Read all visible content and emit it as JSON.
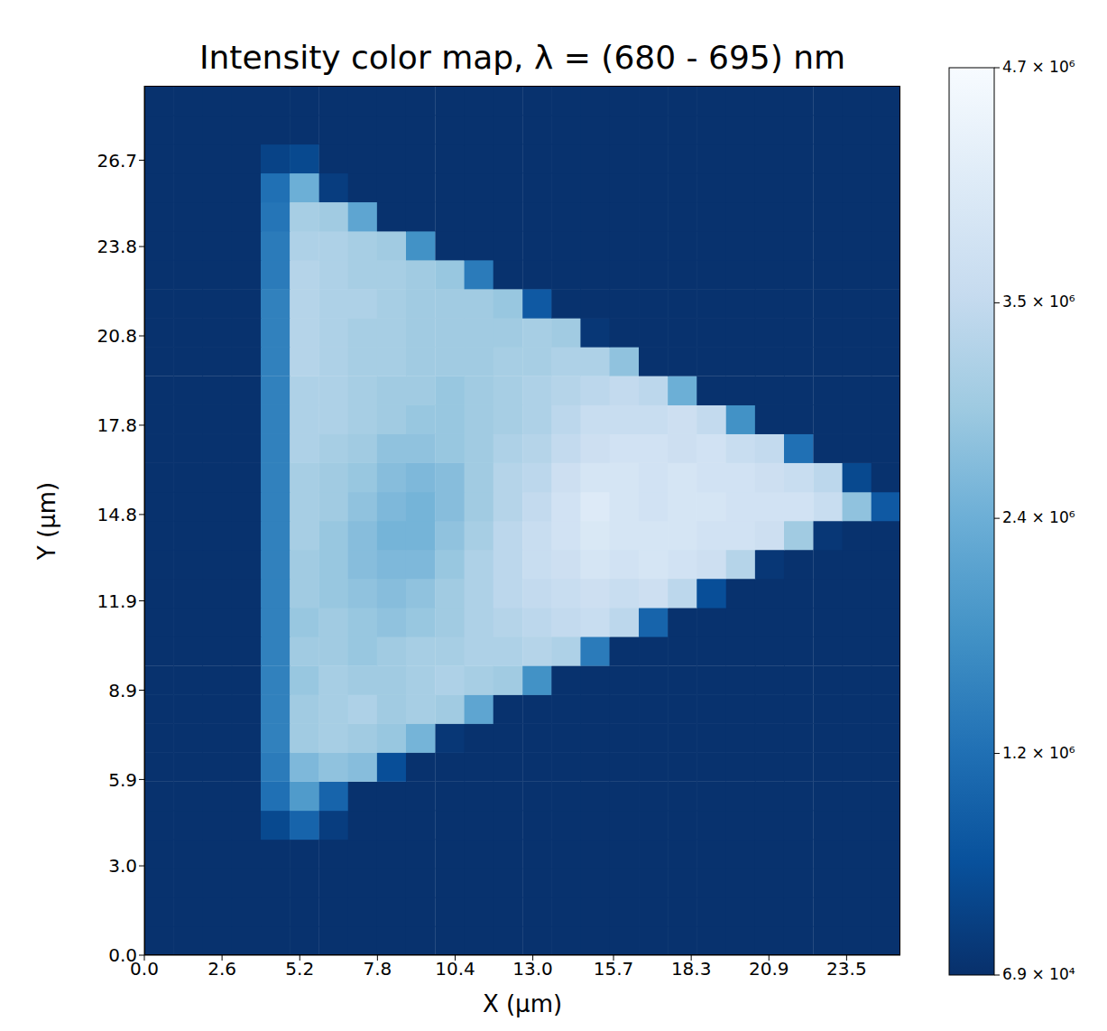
{
  "chart_data": {
    "type": "heatmap",
    "title": "Intensity color map, λ = (680 - 695) nm",
    "x_label": "X (μm)",
    "y_label": "Y (μm)",
    "xlim": [
      0,
      25.3
    ],
    "ylim": [
      0,
      29.2
    ],
    "xticks": [
      {
        "value": 0,
        "label": "0.0"
      },
      2.6,
      5.2,
      7.8,
      10.4,
      {
        "value": 13,
        "label": "13.0"
      },
      15.7,
      18.3,
      20.9,
      23.5
    ],
    "yticks": [
      {
        "value": 0,
        "label": "0.0"
      },
      {
        "value": 3,
        "label": "3.0"
      },
      5.9,
      8.9,
      11.9,
      14.8,
      17.8,
      20.8,
      23.8,
      26.7
    ],
    "x": [
      0.49,
      1.46,
      2.43,
      3.41,
      4.38,
      5.35,
      6.33,
      7.3,
      8.27,
      9.24,
      10.22,
      11.19,
      12.16,
      13.14,
      14.11,
      15.08,
      16.05,
      17.03,
      18.0,
      18.97,
      19.95,
      20.92,
      21.89,
      22.87,
      23.84,
      24.81
    ],
    "y": [
      0.49,
      1.46,
      2.43,
      3.41,
      4.38,
      5.35,
      6.33,
      7.3,
      8.27,
      9.24,
      10.22,
      11.19,
      12.16,
      13.14,
      14.11,
      15.08,
      16.05,
      17.03,
      18.0,
      18.97,
      19.95,
      20.92,
      21.89,
      22.87,
      23.84,
      24.81,
      25.79,
      26.76,
      27.73,
      28.7
    ],
    "values": [
      [
        100000.0,
        100000.0,
        100000.0,
        100000.0,
        100000.0,
        100000.0,
        100000.0,
        100000.0,
        100000.0,
        100000.0,
        100000.0,
        100000.0,
        100000.0,
        100000.0,
        100000.0,
        100000.0,
        100000.0,
        100000.0,
        100000.0,
        100000.0,
        100000.0,
        100000.0,
        100000.0,
        100000.0,
        100000.0,
        100000.0
      ],
      [
        100000.0,
        100000.0,
        100000.0,
        100000.0,
        100000.0,
        100000.0,
        100000.0,
        100000.0,
        100000.0,
        100000.0,
        100000.0,
        100000.0,
        100000.0,
        100000.0,
        100000.0,
        100000.0,
        100000.0,
        100000.0,
        100000.0,
        100000.0,
        100000.0,
        100000.0,
        100000.0,
        100000.0,
        100000.0,
        100000.0
      ],
      [
        100000.0,
        100000.0,
        100000.0,
        100000.0,
        100000.0,
        100000.0,
        100000.0,
        100000.0,
        100000.0,
        100000.0,
        100000.0,
        100000.0,
        100000.0,
        100000.0,
        100000.0,
        100000.0,
        100000.0,
        100000.0,
        100000.0,
        100000.0,
        100000.0,
        100000.0,
        100000.0,
        100000.0,
        100000.0,
        100000.0
      ],
      [
        100000.0,
        100000.0,
        100000.0,
        100000.0,
        100000.0,
        100000.0,
        100000.0,
        100000.0,
        100000.0,
        100000.0,
        100000.0,
        100000.0,
        100000.0,
        100000.0,
        100000.0,
        100000.0,
        100000.0,
        100000.0,
        100000.0,
        100000.0,
        100000.0,
        100000.0,
        100000.0,
        100000.0,
        100000.0,
        100000.0
      ],
      [
        100000.0,
        100000.0,
        100000.0,
        100000.0,
        500000.0,
        1000000.0,
        300000.0,
        100000.0,
        100000.0,
        100000.0,
        100000.0,
        100000.0,
        100000.0,
        100000.0,
        100000.0,
        100000.0,
        100000.0,
        100000.0,
        100000.0,
        100000.0,
        100000.0,
        100000.0,
        100000.0,
        100000.0,
        100000.0,
        100000.0
      ],
      [
        100000.0,
        100000.0,
        100000.0,
        100000.0,
        1200000.0,
        2000000.0,
        1000000.0,
        100000.0,
        100000.0,
        100000.0,
        100000.0,
        100000.0,
        100000.0,
        100000.0,
        100000.0,
        100000.0,
        100000.0,
        100000.0,
        100000.0,
        100000.0,
        100000.0,
        100000.0,
        100000.0,
        100000.0,
        100000.0,
        100000.0
      ],
      [
        100000.0,
        100000.0,
        100000.0,
        100000.0,
        1400000.0,
        2600000.0,
        2800000.0,
        2700000.0,
        600000.0,
        100000.0,
        100000.0,
        100000.0,
        100000.0,
        100000.0,
        100000.0,
        100000.0,
        100000.0,
        100000.0,
        100000.0,
        100000.0,
        100000.0,
        100000.0,
        100000.0,
        100000.0,
        100000.0,
        100000.0
      ],
      [
        100000.0,
        100000.0,
        100000.0,
        100000.0,
        1500000.0,
        3000000.0,
        3100000.0,
        3000000.0,
        2900000.0,
        2500000.0,
        200000.0,
        100000.0,
        100000.0,
        100000.0,
        100000.0,
        100000.0,
        100000.0,
        100000.0,
        100000.0,
        100000.0,
        100000.0,
        100000.0,
        100000.0,
        100000.0,
        100000.0,
        100000.0
      ],
      [
        100000.0,
        100000.0,
        100000.0,
        100000.0,
        1500000.0,
        3000000.0,
        3100000.0,
        3200000.0,
        3000000.0,
        3100000.0,
        3000000.0,
        2200000.0,
        100000.0,
        100000.0,
        100000.0,
        100000.0,
        100000.0,
        100000.0,
        100000.0,
        100000.0,
        100000.0,
        100000.0,
        100000.0,
        100000.0,
        100000.0,
        100000.0
      ],
      [
        100000.0,
        100000.0,
        100000.0,
        100000.0,
        1500000.0,
        2900000.0,
        3100000.0,
        3000000.0,
        3000000.0,
        3100000.0,
        3200000.0,
        3100000.0,
        3000000.0,
        1800000.0,
        100000.0,
        100000.0,
        100000.0,
        100000.0,
        100000.0,
        100000.0,
        100000.0,
        100000.0,
        100000.0,
        100000.0,
        100000.0,
        100000.0
      ],
      [
        100000.0,
        100000.0,
        100000.0,
        100000.0,
        1500000.0,
        3000000.0,
        3000000.0,
        2900000.0,
        3000000.0,
        3100000.0,
        3100000.0,
        3200000.0,
        3200000.0,
        3300000.0,
        3200000.0,
        1400000.0,
        100000.0,
        100000.0,
        100000.0,
        100000.0,
        100000.0,
        100000.0,
        100000.0,
        100000.0,
        100000.0,
        100000.0
      ],
      [
        100000.0,
        100000.0,
        100000.0,
        100000.0,
        1500000.0,
        2900000.0,
        3000000.0,
        2900000.0,
        2800000.0,
        2900000.0,
        3000000.0,
        3200000.0,
        3300000.0,
        3400000.0,
        3500000.0,
        3600000.0,
        3400000.0,
        1000000.0,
        100000.0,
        100000.0,
        100000.0,
        100000.0,
        100000.0,
        100000.0,
        100000.0,
        100000.0
      ],
      [
        100000.0,
        100000.0,
        100000.0,
        100000.0,
        1500000.0,
        3000000.0,
        2900000.0,
        2800000.0,
        2700000.0,
        2800000.0,
        3000000.0,
        3200000.0,
        3400000.0,
        3500000.0,
        3600000.0,
        3700000.0,
        3600000.0,
        3700000.0,
        3400000.0,
        600000.0,
        100000.0,
        100000.0,
        100000.0,
        100000.0,
        100000.0,
        100000.0
      ],
      [
        100000.0,
        100000.0,
        100000.0,
        100000.0,
        1500000.0,
        3000000.0,
        2900000.0,
        2700000.0,
        2600000.0,
        2600000.0,
        2900000.0,
        3200000.0,
        3400000.0,
        3600000.0,
        3700000.0,
        3900000.0,
        3800000.0,
        3900000.0,
        3800000.0,
        3700000.0,
        3300000.0,
        200000.0,
        100000.0,
        100000.0,
        100000.0,
        100000.0
      ],
      [
        100000.0,
        100000.0,
        100000.0,
        100000.0,
        1500000.0,
        3100000.0,
        2900000.0,
        2700000.0,
        2500000.0,
        2500000.0,
        2800000.0,
        3100000.0,
        3400000.0,
        3600000.0,
        3800000.0,
        4000000.0,
        3900000.0,
        3900000.0,
        3900000.0,
        3800000.0,
        3800000.0,
        3700000.0,
        3000000.0,
        200000.0,
        100000.0,
        100000.0
      ],
      [
        100000.0,
        100000.0,
        100000.0,
        100000.0,
        1500000.0,
        3100000.0,
        3000000.0,
        2800000.0,
        2600000.0,
        2500000.0,
        2700000.0,
        3000000.0,
        3300000.0,
        3500000.0,
        3800000.0,
        4100000.0,
        3900000.0,
        3800000.0,
        3900000.0,
        3900000.0,
        3800000.0,
        3800000.0,
        3800000.0,
        3600000.0,
        2800000.0,
        800000.0
      ],
      [
        100000.0,
        100000.0,
        100000.0,
        100000.0,
        1500000.0,
        3100000.0,
        3000000.0,
        2900000.0,
        2700000.0,
        2600000.0,
        2700000.0,
        3000000.0,
        3300000.0,
        3400000.0,
        3700000.0,
        3900000.0,
        3900000.0,
        3800000.0,
        3900000.0,
        3800000.0,
        3800000.0,
        3700000.0,
        3600000.0,
        3400000.0,
        500000.0,
        100000.0
      ],
      [
        100000.0,
        100000.0,
        100000.0,
        100000.0,
        1500000.0,
        3200000.0,
        3100000.0,
        3000000.0,
        2800000.0,
        2800000.0,
        2900000.0,
        3000000.0,
        3200000.0,
        3300000.0,
        3500000.0,
        3700000.0,
        3800000.0,
        3800000.0,
        3700000.0,
        3800000.0,
        3600000.0,
        3500000.0,
        1200000.0,
        100000.0,
        100000.0,
        100000.0
      ],
      [
        100000.0,
        100000.0,
        100000.0,
        100000.0,
        1500000.0,
        3200000.0,
        3200000.0,
        3100000.0,
        3000000.0,
        2900000.0,
        2900000.0,
        3000000.0,
        3100000.0,
        3200000.0,
        3400000.0,
        3600000.0,
        3600000.0,
        3600000.0,
        3700000.0,
        3500000.0,
        1800000.0,
        100000.0,
        100000.0,
        100000.0,
        100000.0,
        100000.0
      ],
      [
        100000.0,
        100000.0,
        100000.0,
        100000.0,
        1500000.0,
        3200000.0,
        3200000.0,
        3100000.0,
        3000000.0,
        3000000.0,
        2900000.0,
        3000000.0,
        3100000.0,
        3200000.0,
        3300000.0,
        3400000.0,
        3500000.0,
        3400000.0,
        2400000.0,
        100000.0,
        100000.0,
        100000.0,
        100000.0,
        100000.0,
        100000.0,
        100000.0
      ],
      [
        100000.0,
        100000.0,
        100000.0,
        100000.0,
        1500000.0,
        3300000.0,
        3200000.0,
        3100000.0,
        3100000.0,
        3000000.0,
        3000000.0,
        3000000.0,
        3100000.0,
        3100000.0,
        3200000.0,
        3200000.0,
        2800000.0,
        100000.0,
        100000.0,
        100000.0,
        100000.0,
        100000.0,
        100000.0,
        100000.0,
        100000.0,
        100000.0
      ],
      [
        100000.0,
        100000.0,
        100000.0,
        100000.0,
        1500000.0,
        3300000.0,
        3200000.0,
        3100000.0,
        3100000.0,
        3000000.0,
        3000000.0,
        3000000.0,
        3000000.0,
        3100000.0,
        3000000.0,
        200000.0,
        100000.0,
        100000.0,
        100000.0,
        100000.0,
        100000.0,
        100000.0,
        100000.0,
        100000.0,
        100000.0,
        100000.0
      ],
      [
        100000.0,
        100000.0,
        100000.0,
        100000.0,
        1500000.0,
        3300000.0,
        3200000.0,
        3200000.0,
        3100000.0,
        3000000.0,
        3000000.0,
        3000000.0,
        2900000.0,
        800000.0,
        100000.0,
        100000.0,
        100000.0,
        100000.0,
        100000.0,
        100000.0,
        100000.0,
        100000.0,
        100000.0,
        100000.0,
        100000.0,
        100000.0
      ],
      [
        100000.0,
        100000.0,
        100000.0,
        100000.0,
        1400000.0,
        3300000.0,
        3200000.0,
        3100000.0,
        3100000.0,
        3000000.0,
        2900000.0,
        1400000.0,
        100000.0,
        100000.0,
        100000.0,
        100000.0,
        100000.0,
        100000.0,
        100000.0,
        100000.0,
        100000.0,
        100000.0,
        100000.0,
        100000.0,
        100000.0,
        100000.0
      ],
      [
        100000.0,
        100000.0,
        100000.0,
        100000.0,
        1400000.0,
        3200000.0,
        3200000.0,
        3100000.0,
        3000000.0,
        1800000.0,
        100000.0,
        100000.0,
        100000.0,
        100000.0,
        100000.0,
        100000.0,
        100000.0,
        100000.0,
        100000.0,
        100000.0,
        100000.0,
        100000.0,
        100000.0,
        100000.0,
        100000.0,
        100000.0
      ],
      [
        100000.0,
        100000.0,
        100000.0,
        100000.0,
        1300000.0,
        3100000.0,
        3000000.0,
        2200000.0,
        100000.0,
        100000.0,
        100000.0,
        100000.0,
        100000.0,
        100000.0,
        100000.0,
        100000.0,
        100000.0,
        100000.0,
        100000.0,
        100000.0,
        100000.0,
        100000.0,
        100000.0,
        100000.0,
        100000.0,
        100000.0
      ],
      [
        100000.0,
        100000.0,
        100000.0,
        100000.0,
        1200000.0,
        2400000.0,
        300000.0,
        100000.0,
        100000.0,
        100000.0,
        100000.0,
        100000.0,
        100000.0,
        100000.0,
        100000.0,
        100000.0,
        100000.0,
        100000.0,
        100000.0,
        100000.0,
        100000.0,
        100000.0,
        100000.0,
        100000.0,
        100000.0,
        100000.0
      ],
      [
        100000.0,
        100000.0,
        100000.0,
        100000.0,
        400000.0,
        500000.0,
        100000.0,
        100000.0,
        100000.0,
        100000.0,
        100000.0,
        100000.0,
        100000.0,
        100000.0,
        100000.0,
        100000.0,
        100000.0,
        100000.0,
        100000.0,
        100000.0,
        100000.0,
        100000.0,
        100000.0,
        100000.0,
        100000.0,
        100000.0
      ],
      [
        100000.0,
        100000.0,
        100000.0,
        100000.0,
        100000.0,
        100000.0,
        100000.0,
        100000.0,
        100000.0,
        100000.0,
        100000.0,
        100000.0,
        100000.0,
        100000.0,
        100000.0,
        100000.0,
        100000.0,
        100000.0,
        100000.0,
        100000.0,
        100000.0,
        100000.0,
        100000.0,
        100000.0,
        100000.0,
        100000.0
      ],
      [
        100000.0,
        100000.0,
        100000.0,
        100000.0,
        100000.0,
        100000.0,
        100000.0,
        100000.0,
        100000.0,
        100000.0,
        100000.0,
        100000.0,
        100000.0,
        100000.0,
        100000.0,
        100000.0,
        100000.0,
        100000.0,
        100000.0,
        100000.0,
        100000.0,
        100000.0,
        100000.0,
        100000.0,
        100000.0,
        100000.0
      ]
    ],
    "colorbar": {
      "range": [
        69000,
        4700000
      ],
      "ticks": [
        {
          "value": 69000,
          "label": "6.9 × 10⁴"
        },
        {
          "value": 1200000,
          "label": "1.2 × 10⁶"
        },
        {
          "value": 2400000,
          "label": "2.4 × 10⁶"
        },
        {
          "value": 3500000,
          "label": "3.5 × 10⁶"
        },
        {
          "value": 4700000,
          "label": "4.7 × 10⁶"
        }
      ]
    }
  }
}
